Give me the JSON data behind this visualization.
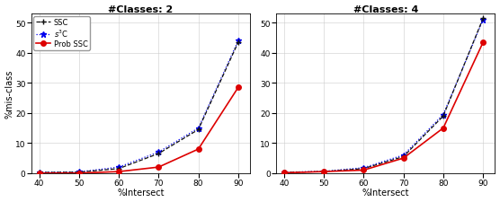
{
  "x": [
    40,
    50,
    60,
    70,
    80,
    90
  ],
  "subplot1": {
    "title": "#Classes: 2",
    "ssc": [
      0.2,
      0.3,
      1.5,
      6.5,
      14.5,
      43.5
    ],
    "s3c": [
      0.3,
      0.4,
      2.0,
      7.0,
      15.0,
      44.0
    ],
    "prob_ssc": [
      0.0,
      0.0,
      0.5,
      2.0,
      8.0,
      28.5
    ]
  },
  "subplot2": {
    "title": "#Classes: 4",
    "ssc": [
      0.2,
      0.5,
      1.5,
      5.5,
      19.0,
      51.5
    ],
    "s3c": [
      0.3,
      0.6,
      1.8,
      6.0,
      19.5,
      51.0
    ],
    "prob_ssc": [
      0.1,
      0.5,
      1.0,
      5.0,
      15.0,
      43.5
    ]
  },
  "xlim": [
    38,
    93
  ],
  "ylim": [
    0,
    53
  ],
  "yticks": [
    0,
    10,
    20,
    30,
    40,
    50
  ],
  "xticks": [
    40,
    50,
    60,
    70,
    80,
    90
  ],
  "xlabel": "%Intersect",
  "ylabel": "%mis-class",
  "ssc_color": "#111111",
  "s3c_color": "#0000EE",
  "prob_ssc_color": "#DD0000",
  "legend_labels": [
    "SSC",
    "$s^3$C",
    "Prob SSC"
  ],
  "title_fontsize": 8,
  "label_fontsize": 7,
  "tick_fontsize": 6.5,
  "legend_fontsize": 6
}
